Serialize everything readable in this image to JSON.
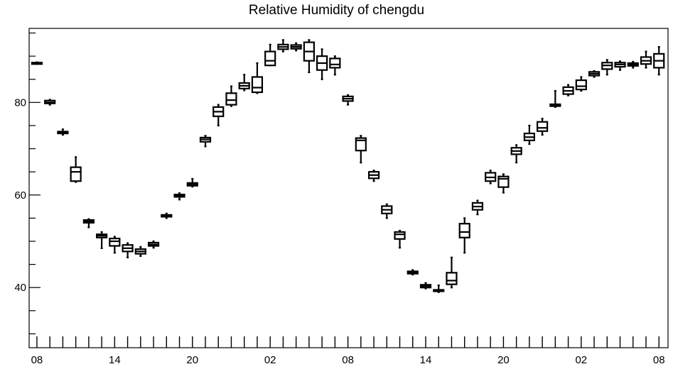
{
  "chart_data": {
    "type": "boxplot",
    "title": "Relative Humidity of chengdu",
    "xlabel": "",
    "ylabel": "",
    "ylim": [
      27,
      96
    ],
    "yticks": [
      40,
      60,
      80
    ],
    "xticks": [
      {
        "x": 0,
        "label": "08"
      },
      {
        "x": 6,
        "label": "14"
      },
      {
        "x": 12,
        "label": "20"
      },
      {
        "x": 18,
        "label": "02"
      },
      {
        "x": 24,
        "label": "08"
      },
      {
        "x": 30,
        "label": "14"
      },
      {
        "x": 36,
        "label": "20"
      },
      {
        "x": 42,
        "label": "02"
      },
      {
        "x": 48,
        "label": "08"
      }
    ],
    "xlim": [
      -0.6,
      48.7
    ],
    "grid": false,
    "boxes": [
      {
        "x": 0,
        "whislo": 88.3,
        "q1": 88.4,
        "med": 88.5,
        "q3": 88.6,
        "whishi": 88.7
      },
      {
        "x": 1,
        "whislo": 79.5,
        "q1": 79.8,
        "med": 80.0,
        "q3": 80.4,
        "whishi": 80.6
      },
      {
        "x": 2,
        "whislo": 73.0,
        "q1": 73.3,
        "med": 73.5,
        "q3": 73.7,
        "whishi": 74.2
      },
      {
        "x": 3,
        "whislo": 62.8,
        "q1": 63.0,
        "med": 65.0,
        "q3": 66.0,
        "whishi": 68.2
      },
      {
        "x": 4,
        "whislo": 53.0,
        "q1": 54.0,
        "med": 54.3,
        "q3": 54.6,
        "whishi": 54.8
      },
      {
        "x": 5,
        "whislo": 48.5,
        "q1": 50.8,
        "med": 51.2,
        "q3": 51.5,
        "whishi": 52.0
      },
      {
        "x": 6,
        "whislo": 47.5,
        "q1": 49.0,
        "med": 50.0,
        "q3": 50.6,
        "whishi": 51.0
      },
      {
        "x": 7,
        "whislo": 46.5,
        "q1": 47.8,
        "med": 48.5,
        "q3": 49.2,
        "whishi": 49.6
      },
      {
        "x": 8,
        "whislo": 46.8,
        "q1": 47.3,
        "med": 47.8,
        "q3": 48.3,
        "whishi": 48.8
      },
      {
        "x": 9,
        "whislo": 48.6,
        "q1": 49.0,
        "med": 49.3,
        "q3": 49.7,
        "whishi": 50.0
      },
      {
        "x": 10,
        "whislo": 55.0,
        "q1": 55.3,
        "med": 55.5,
        "q3": 55.7,
        "whishi": 56.0
      },
      {
        "x": 11,
        "whislo": 59.0,
        "q1": 59.6,
        "med": 59.9,
        "q3": 60.1,
        "whishi": 60.4
      },
      {
        "x": 12,
        "whislo": 61.8,
        "q1": 62.0,
        "med": 62.3,
        "q3": 62.6,
        "whishi": 63.5
      },
      {
        "x": 13,
        "whislo": 70.5,
        "q1": 71.5,
        "med": 72.0,
        "q3": 72.4,
        "whishi": 72.8
      },
      {
        "x": 14,
        "whislo": 75.0,
        "q1": 77.0,
        "med": 78.0,
        "q3": 79.0,
        "whishi": 79.5
      },
      {
        "x": 15,
        "whislo": 79.2,
        "q1": 79.5,
        "med": 80.5,
        "q3": 82.0,
        "whishi": 83.5
      },
      {
        "x": 16,
        "whislo": 82.6,
        "q1": 83.0,
        "med": 83.6,
        "q3": 84.2,
        "whishi": 86.0
      },
      {
        "x": 17,
        "whislo": 82.0,
        "q1": 82.2,
        "med": 83.2,
        "q3": 85.5,
        "whishi": 88.5
      },
      {
        "x": 18,
        "whislo": 88.0,
        "q1": 88.0,
        "med": 89.0,
        "q3": 91.0,
        "whishi": 92.5
      },
      {
        "x": 19,
        "whislo": 91.0,
        "q1": 91.5,
        "med": 92.0,
        "q3": 92.5,
        "whishi": 93.5
      },
      {
        "x": 20,
        "whislo": 91.2,
        "q1": 91.6,
        "med": 92.0,
        "q3": 92.4,
        "whishi": 92.8
      },
      {
        "x": 21,
        "whislo": 86.5,
        "q1": 89.0,
        "med": 91.0,
        "q3": 93.0,
        "whishi": 93.5
      },
      {
        "x": 22,
        "whislo": 85.0,
        "q1": 87.0,
        "med": 88.5,
        "q3": 90.0,
        "whishi": 91.5
      },
      {
        "x": 23,
        "whislo": 86.0,
        "q1": 87.5,
        "med": 88.2,
        "q3": 89.5,
        "whishi": 90.0
      },
      {
        "x": 24,
        "whislo": 79.5,
        "q1": 80.3,
        "med": 80.8,
        "q3": 81.3,
        "whishi": 81.6
      },
      {
        "x": 25,
        "whislo": 67.0,
        "q1": 69.6,
        "med": 71.8,
        "q3": 72.3,
        "whishi": 72.8
      },
      {
        "x": 26,
        "whislo": 63.0,
        "q1": 63.6,
        "med": 64.3,
        "q3": 65.0,
        "whishi": 65.3
      },
      {
        "x": 27,
        "whislo": 55.0,
        "q1": 56.0,
        "med": 56.8,
        "q3": 57.6,
        "whishi": 58.0
      },
      {
        "x": 28,
        "whislo": 48.6,
        "q1": 50.5,
        "med": 51.5,
        "q3": 52.0,
        "whishi": 52.3
      },
      {
        "x": 29,
        "whislo": 42.8,
        "q1": 43.0,
        "med": 43.2,
        "q3": 43.5,
        "whishi": 43.8
      },
      {
        "x": 30,
        "whislo": 39.8,
        "q1": 40.0,
        "med": 40.3,
        "q3": 40.6,
        "whishi": 41.0
      },
      {
        "x": 31,
        "whislo": 39.0,
        "q1": 39.2,
        "med": 39.3,
        "q3": 39.5,
        "whishi": 40.5
      },
      {
        "x": 32,
        "whislo": 40.0,
        "q1": 40.7,
        "med": 41.5,
        "q3": 43.2,
        "whishi": 46.5
      },
      {
        "x": 33,
        "whislo": 47.5,
        "q1": 50.8,
        "med": 52.0,
        "q3": 53.8,
        "whishi": 55.0
      },
      {
        "x": 34,
        "whislo": 55.8,
        "q1": 56.8,
        "med": 57.5,
        "q3": 58.3,
        "whishi": 58.8
      },
      {
        "x": 35,
        "whislo": 62.5,
        "q1": 63.0,
        "med": 63.8,
        "q3": 64.8,
        "whishi": 65.3
      },
      {
        "x": 36,
        "whislo": 60.5,
        "q1": 61.7,
        "med": 63.5,
        "q3": 64.0,
        "whishi": 64.5
      },
      {
        "x": 37,
        "whislo": 67.0,
        "q1": 68.8,
        "med": 69.5,
        "q3": 70.2,
        "whishi": 70.8
      },
      {
        "x": 38,
        "whislo": 71.0,
        "q1": 71.8,
        "med": 72.5,
        "q3": 73.3,
        "whishi": 75.0
      },
      {
        "x": 39,
        "whislo": 73.0,
        "q1": 73.8,
        "med": 74.5,
        "q3": 75.8,
        "whishi": 76.5
      },
      {
        "x": 40,
        "whislo": 79.0,
        "q1": 79.2,
        "med": 79.4,
        "q3": 79.6,
        "whishi": 82.5
      },
      {
        "x": 41,
        "whislo": 81.5,
        "q1": 81.8,
        "med": 82.5,
        "q3": 83.3,
        "whishi": 83.8
      },
      {
        "x": 42,
        "whislo": 82.5,
        "q1": 82.8,
        "med": 83.5,
        "q3": 84.8,
        "whishi": 85.5
      },
      {
        "x": 43,
        "whislo": 85.5,
        "q1": 85.8,
        "med": 86.2,
        "q3": 86.6,
        "whishi": 86.8
      },
      {
        "x": 44,
        "whislo": 86.0,
        "q1": 87.2,
        "med": 88.0,
        "q3": 88.6,
        "whishi": 89.2
      },
      {
        "x": 45,
        "whislo": 87.0,
        "q1": 87.7,
        "med": 88.2,
        "q3": 88.6,
        "whishi": 88.9
      },
      {
        "x": 46,
        "whislo": 87.5,
        "q1": 87.9,
        "med": 88.2,
        "q3": 88.5,
        "whishi": 88.8
      },
      {
        "x": 47,
        "whislo": 87.5,
        "q1": 88.3,
        "med": 89.0,
        "q3": 89.8,
        "whishi": 91.0
      },
      {
        "x": 48,
        "whislo": 86.0,
        "q1": 87.5,
        "med": 89.0,
        "q3": 90.5,
        "whishi": 92.0
      }
    ]
  }
}
